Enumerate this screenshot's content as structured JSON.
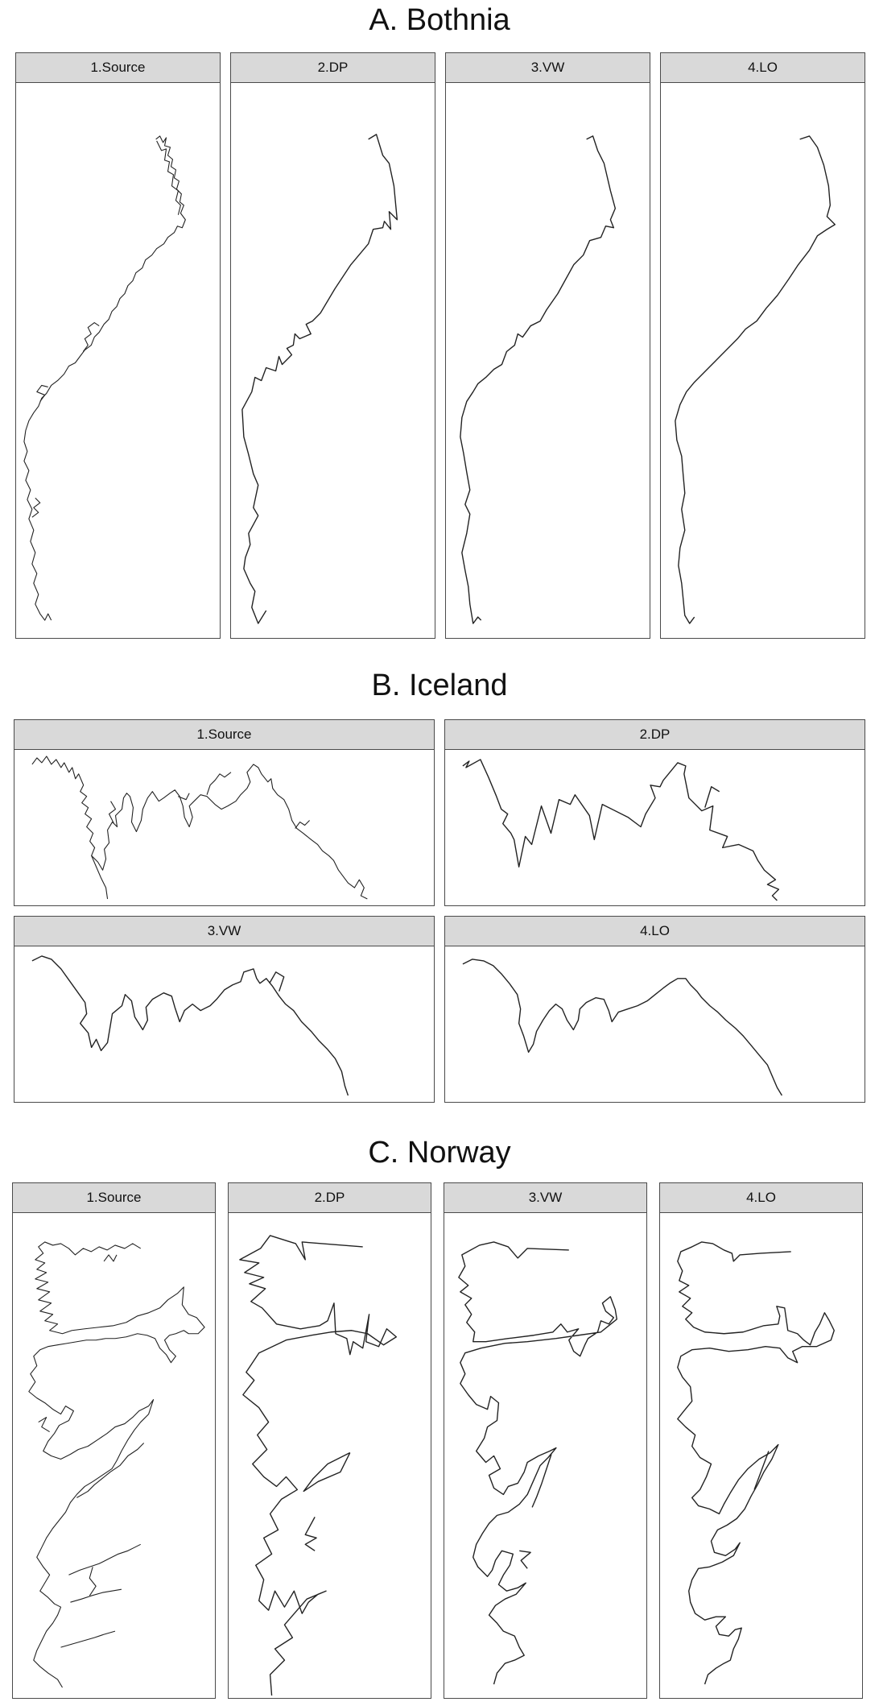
{
  "sections": [
    {
      "title": "A. Bothnia",
      "panels": [
        {
          "label": "1.Source"
        },
        {
          "label": "2.DP"
        },
        {
          "label": "3.VW"
        },
        {
          "label": "4.LO"
        }
      ]
    },
    {
      "title": "B. Iceland",
      "panels": [
        {
          "label": "1.Source"
        },
        {
          "label": "2.DP"
        },
        {
          "label": "3.VW"
        },
        {
          "label": "4.LO"
        }
      ]
    },
    {
      "title": "C. Norway",
      "panels": [
        {
          "label": "1.Source"
        },
        {
          "label": "2.DP"
        },
        {
          "label": "3.VW"
        },
        {
          "label": "4.LO"
        }
      ]
    }
  ],
  "colors": {
    "strip": "#d9d9d9",
    "border": "#4a4a4a",
    "line": "#222222"
  }
}
